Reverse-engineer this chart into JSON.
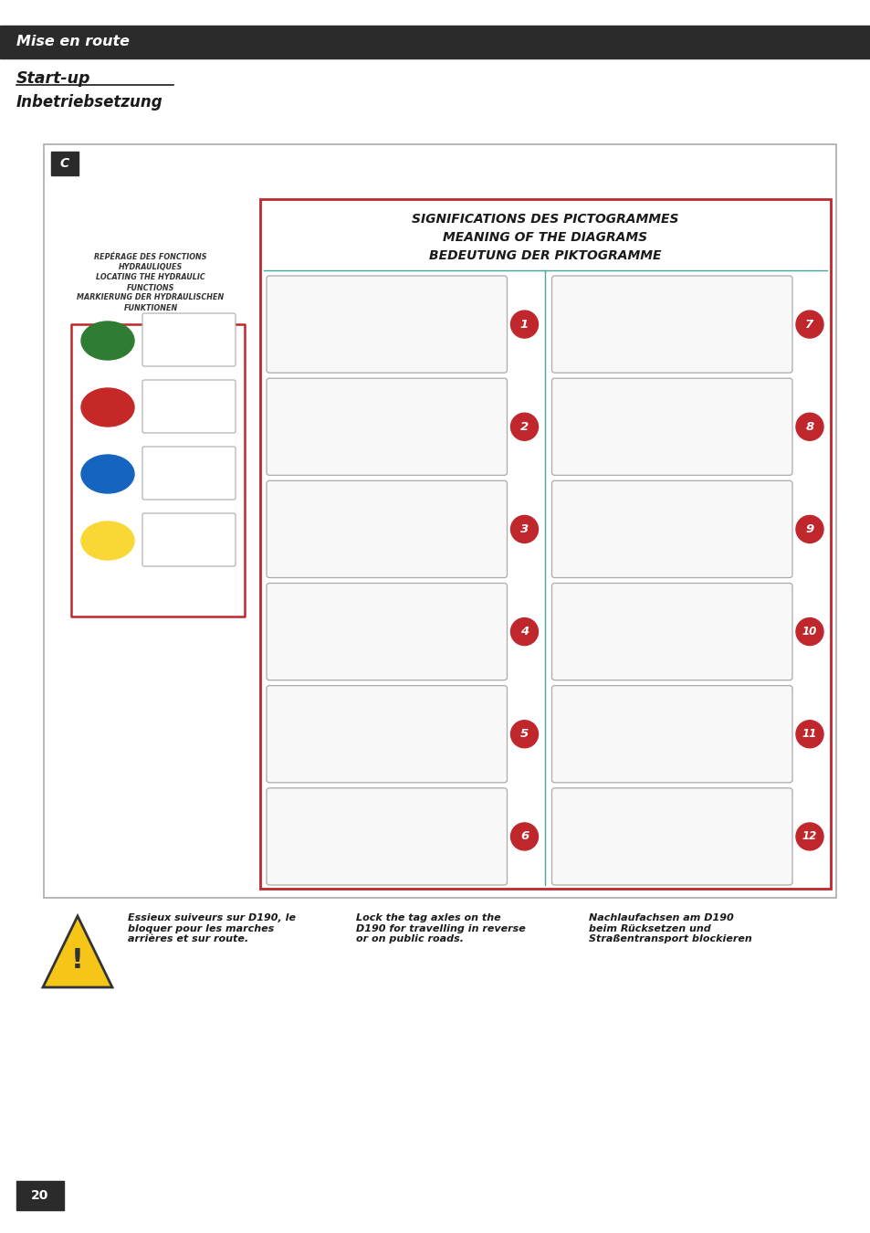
{
  "page_bg": "#ffffff",
  "header_bg": "#2b2b2b",
  "header_text": "Mise en route",
  "header_text_color": "#ffffff",
  "section1": "Start-up",
  "section2": "Inbetriebsetzung",
  "section_color": "#1a1a1a",
  "page_number": "20",
  "page_num_bg": "#2b2b2b",
  "box_border_color": "#bbbbbb",
  "red_box_border": "#c0272d",
  "left_label_lines": [
    "REPÉRAGE DES FONCTIONS",
    "HYDRAULIQUES",
    "LOCATING THE HYDRAULIC",
    "FUNCTIONS",
    "MARKIERUNG DER HYDRAULISCHEN",
    "FUNKTIONEN"
  ],
  "colors_left": [
    "#2e7d32",
    "#c62828",
    "#1565c0",
    "#f9d835"
  ],
  "title_line1": "SIGNIFICATIONS DES PICTOGRAMMES",
  "title_line2": "MEANING OF THE DIAGRAMS",
  "title_line3": "BEDEUTUNG DER PIKTOGRAMME",
  "warning_text_fr": "Essieux suiveurs sur D190, le\nbloquer pour les marches\narrières et sur route.",
  "warning_text_en": "Lock the tag axles on the\nD190 for travelling in reverse\nor on public roads.",
  "warning_text_de": "Nachlaufachsen am D190\nbeim Rücksetzen und\nStraßentransport blockieren",
  "numbers": [
    "1",
    "2",
    "3",
    "4",
    "5",
    "6",
    "7",
    "8",
    "9",
    "10",
    "11",
    "12"
  ],
  "number_color": "#c0272d",
  "divider_color": "#4aa0a0",
  "pic_border_color": "#aaaaaa",
  "pic_bg": "#f8f8f8"
}
